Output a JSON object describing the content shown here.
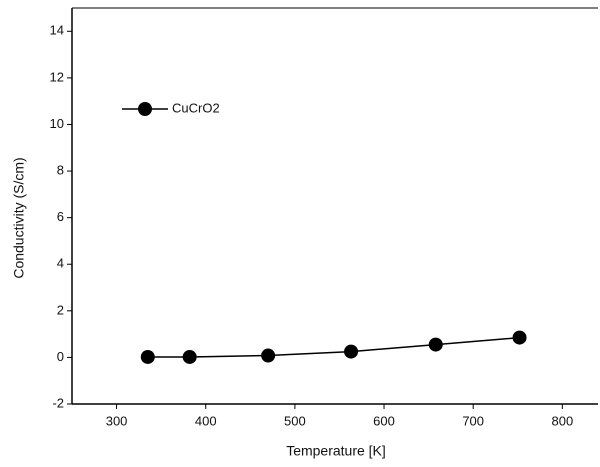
{
  "chart_data": {
    "type": "line",
    "x_label": "Temperature [K]",
    "y_label": "Conductivity (S/cm)",
    "series": [
      {
        "name": "CuCrO2",
        "color": "#000000",
        "x": [
          335,
          382,
          470,
          563,
          658,
          752
        ],
        "values": [
          0.02,
          0.02,
          0.08,
          0.25,
          0.55,
          0.85
        ]
      }
    ],
    "xlim": [
      250,
      840
    ],
    "ylim": [
      -2,
      15
    ],
    "xticks": [
      300,
      400,
      500,
      600,
      700,
      800
    ],
    "yticks": [
      -2,
      0,
      2,
      4,
      6,
      8,
      10,
      12,
      14
    ],
    "legend": "upper left"
  }
}
